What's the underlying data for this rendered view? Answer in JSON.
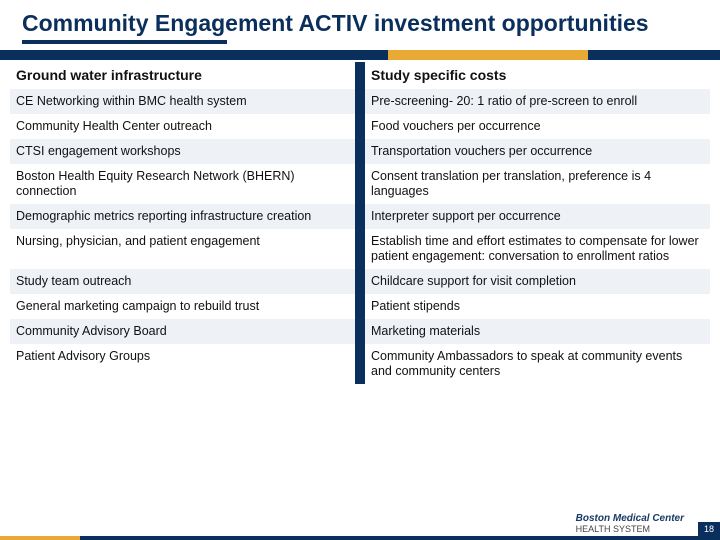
{
  "title": "Community Engagement ACTIV investment opportunities",
  "colors": {
    "navy": "#0a2f5c",
    "gold": "#e9a935",
    "alt_row": "#eef2f6",
    "white": "#ffffff"
  },
  "table": {
    "left_header": "Ground water infrastructure",
    "right_header": "Study specific costs",
    "rows": [
      {
        "left": "CE Networking within BMC health system",
        "right": "Pre-screening- 20: 1 ratio of pre-screen to enroll",
        "alt": true
      },
      {
        "left": "Community Health Center outreach",
        "right": "Food vouchers per occurrence",
        "alt": false
      },
      {
        "left": "CTSI engagement workshops",
        "right": "Transportation vouchers per occurrence",
        "alt": true
      },
      {
        "left": "Boston Health Equity Research Network (BHERN) connection",
        "right": "Consent translation per translation, preference is 4 languages",
        "alt": false
      },
      {
        "left": "Demographic metrics reporting infrastructure creation",
        "right": "Interpreter support per occurrence",
        "alt": true
      },
      {
        "left": "Nursing, physician, and patient engagement",
        "right": "Establish time and effort estimates to compensate for lower patient engagement: conversation to enrollment ratios",
        "alt": false
      },
      {
        "left": "Study team outreach",
        "right": "Childcare support for visit completion",
        "alt": true
      },
      {
        "left": "General marketing campaign to rebuild trust",
        "right": "Patient stipends",
        "alt": false
      },
      {
        "left": "Community Advisory Board",
        "right": "Marketing materials",
        "alt": true
      },
      {
        "left": "Patient Advisory Groups",
        "right": "Community Ambassadors to speak at community events and community centers",
        "alt": false
      }
    ]
  },
  "footer": {
    "logo_line1": "Boston Medical Center",
    "logo_line2": "HEALTH SYSTEM",
    "page_number": "18"
  }
}
